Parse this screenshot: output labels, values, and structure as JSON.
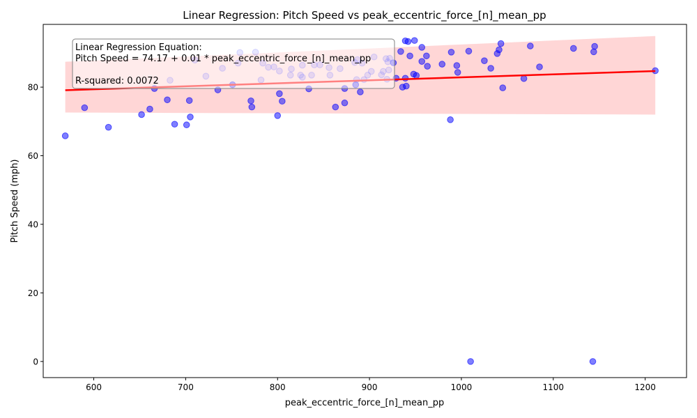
{
  "chart_data": {
    "type": "scatter",
    "title": "Linear Regression: Pitch Speed vs peak_eccentric_force_[n]_mean_pp",
    "xlabel": "peak_eccentric_force_[n]_mean_pp",
    "ylabel": "Pitch Speed (mph)",
    "xlim": [
      545,
      1245
    ],
    "ylim": [
      -4.7,
      98.3
    ],
    "xticks": [
      600,
      700,
      800,
      900,
      1000,
      1100,
      1200
    ],
    "yticks": [
      0,
      20,
      40,
      60,
      80
    ],
    "grid": false,
    "annotation": {
      "line1": "Linear Regression Equation:",
      "line2": "Pitch Speed = 74.17 + 0.01 * peak_eccentric_force_[n]_mean_pp",
      "line3": "R-squared: 0.0072"
    },
    "regression": {
      "x": [
        569,
        1211
      ],
      "y": [
        79.1,
        84.7
      ],
      "color": "#ff0000",
      "ci_color": "#ffcccc",
      "ci_lower": [
        72.6,
        72.0
      ],
      "ci_upper": [
        87.4,
        94.9
      ]
    },
    "points_color": "#0000ff",
    "series": [
      {
        "x": [
          569,
          590,
          616,
          652,
          661,
          666,
          680,
          683,
          688,
          701,
          704,
          705,
          710,
          722,
          735,
          740,
          751,
          757,
          759,
          771,
          772,
          776,
          782,
          784,
          790,
          796,
          800,
          802,
          802,
          805,
          814,
          815,
          825,
          827,
          827,
          834,
          837,
          840,
          846,
          856,
          857,
          863,
          868,
          873,
          873,
          884,
          885,
          886,
          887,
          890,
          892,
          894,
          898,
          902,
          905,
          913,
          915,
          918,
          919,
          920,
          921,
          922,
          926,
          929,
          934,
          936,
          939,
          939,
          940,
          942,
          944,
          948,
          949,
          951,
          957,
          957,
          962,
          963,
          979,
          988,
          989,
          995,
          996,
          1008,
          1010,
          1025,
          1032,
          1039,
          1041,
          1043,
          1045,
          1068,
          1075,
          1085,
          1122,
          1143,
          1144,
          1145,
          1211
        ],
        "y": [
          65.8,
          74.0,
          68.3,
          72.0,
          73.6,
          79.6,
          76.3,
          82.0,
          69.2,
          69.0,
          76.1,
          71.3,
          87.9,
          83.2,
          79.2,
          85.5,
          80.7,
          87.0,
          90.1,
          76.0,
          74.2,
          90.2,
          82.1,
          87.0,
          85.8,
          85.9,
          71.7,
          84.7,
          78.1,
          75.9,
          83.5,
          85.3,
          83.5,
          82.9,
          86.4,
          79.5,
          83.5,
          86.5,
          86.5,
          85.7,
          83.5,
          74.2,
          85.4,
          75.4,
          79.6,
          87.2,
          80.7,
          82.2,
          88.0,
          78.6,
          87.0,
          82.2,
          83.5,
          84.6,
          88.8,
          83.6,
          84.6,
          88.3,
          82.3,
          87.4,
          85.0,
          88.4,
          87.1,
          82.6,
          90.4,
          80.0,
          93.5,
          82.6,
          80.3,
          93.3,
          89.1,
          83.8,
          93.6,
          83.4,
          91.6,
          87.5,
          89.1,
          86.1,
          86.7,
          70.5,
          90.2,
          86.3,
          84.3,
          90.5,
          0.0,
          87.7,
          85.5,
          89.8,
          90.9,
          92.7,
          79.8,
          82.5,
          92.0,
          85.9,
          91.3,
          0.0,
          90.3,
          91.9,
          84.8
        ],
        "opacity": [
          0.5,
          0.5,
          0.5,
          0.5,
          0.5,
          0.5,
          0.5,
          0.18,
          0.5,
          0.5,
          0.5,
          0.5,
          0.2,
          0.2,
          0.5,
          0.2,
          0.5,
          0.2,
          0.2,
          0.5,
          0.5,
          0.2,
          0.2,
          0.2,
          0.2,
          0.2,
          0.5,
          0.2,
          0.5,
          0.5,
          0.2,
          0.2,
          0.2,
          0.2,
          0.2,
          0.5,
          0.2,
          0.2,
          0.2,
          0.2,
          0.2,
          0.5,
          0.2,
          0.5,
          0.5,
          0.2,
          0.5,
          0.2,
          0.2,
          0.5,
          0.2,
          0.2,
          0.2,
          0.2,
          0.2,
          0.2,
          0.2,
          0.2,
          0.2,
          0.2,
          0.2,
          0.2,
          0.5,
          0.5,
          0.5,
          0.5,
          0.5,
          0.5,
          0.5,
          0.5,
          0.5,
          0.5,
          0.5,
          0.5,
          0.5,
          0.5,
          0.5,
          0.5,
          0.5,
          0.5,
          0.5,
          0.5,
          0.5,
          0.5,
          0.5,
          0.5,
          0.5,
          0.5,
          0.5,
          0.5,
          0.5,
          0.5,
          0.5,
          0.5,
          0.5,
          0.5,
          0.5,
          0.5,
          0.5
        ]
      }
    ]
  }
}
